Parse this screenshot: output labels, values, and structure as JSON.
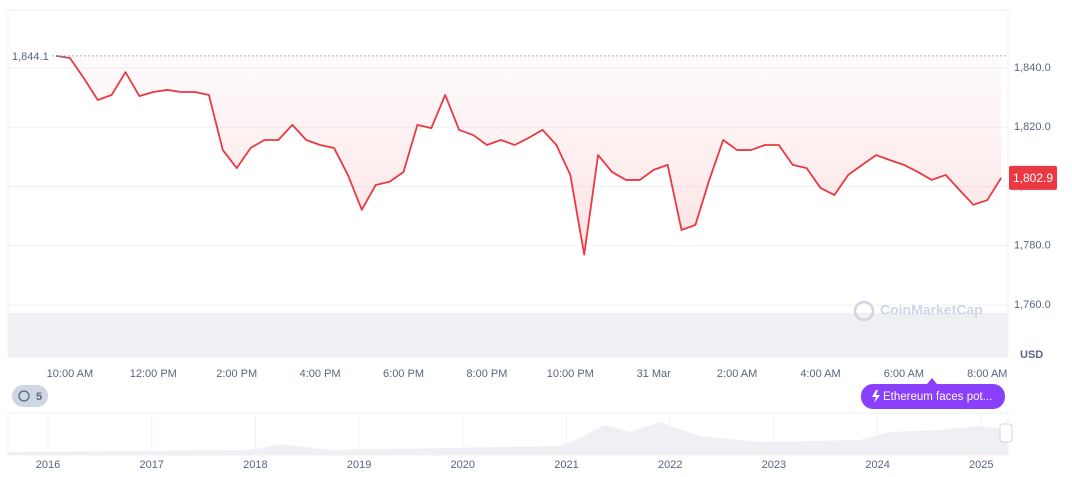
{
  "chart_data": {
    "type": "line",
    "unit": "USD",
    "watermark": "CoinMarketCap",
    "categories": [
      null,
      "10:00 AM",
      null,
      null,
      null,
      null,
      null,
      "12:00 PM",
      null,
      null,
      null,
      null,
      null,
      "2:00 PM",
      null,
      null,
      null,
      null,
      null,
      "4:00 PM",
      null,
      null,
      null,
      null,
      null,
      "6:00 PM",
      null,
      null,
      null,
      null,
      null,
      "8:00 PM",
      null,
      null,
      null,
      null,
      null,
      "10:00 PM",
      null,
      null,
      null,
      null,
      null,
      "31 Mar",
      null,
      null,
      null,
      null,
      null,
      "2:00 AM",
      null,
      null,
      null,
      null,
      null,
      "4:00 AM",
      null,
      null,
      null,
      null,
      null,
      "6:00 AM",
      null,
      null,
      null,
      null,
      null,
      "8:00 AM",
      null
    ],
    "values": [
      1844.1,
      1843.4,
      1836.6,
      1829.2,
      1830.9,
      1838.6,
      1830.5,
      1831.9,
      1832.6,
      1831.9,
      1831.9,
      1830.9,
      1812.3,
      1806.2,
      1813.0,
      1815.7,
      1815.7,
      1820.8,
      1815.7,
      1814.0,
      1813.0,
      1803.9,
      1792.1,
      1800.5,
      1801.6,
      1804.9,
      1820.8,
      1819.7,
      1830.9,
      1819.1,
      1817.4,
      1814.0,
      1815.7,
      1814.0,
      1816.4,
      1819.1,
      1814.0,
      1803.9,
      1777.0,
      1810.6,
      1804.9,
      1802.2,
      1802.2,
      1805.6,
      1807.3,
      1785.3,
      1787.0,
      1802.2,
      1815.7,
      1812.3,
      1812.3,
      1814.0,
      1814.0,
      1807.3,
      1806.2,
      1799.5,
      1797.1,
      1803.9,
      1807.3,
      1810.6,
      1808.9,
      1807.3,
      1804.9,
      1802.2,
      1803.9,
      1798.8,
      1793.8,
      1795.4,
      1802.9
    ],
    "color_up": "#16c784",
    "color_down": "#ea3943",
    "reference": {
      "value": 1844.1,
      "label": "1,844.1"
    },
    "last_price": {
      "value": 1802.9,
      "label": "1,802.9"
    },
    "ylim": [
      1742.4,
      1859.6
    ],
    "yticks": [
      {
        "value": 1760,
        "label": "1,760.0"
      },
      {
        "value": 1780,
        "label": "1,780.0"
      },
      {
        "value": 1800,
        "label": "1,800.0"
      },
      {
        "value": 1820,
        "label": "1,820.0"
      },
      {
        "value": 1840,
        "label": "1,840.0"
      }
    ],
    "grid": true,
    "events_badge": "5",
    "news": "Ethereum faces pot...",
    "navigator": {
      "labels": [
        "2016",
        "2017",
        "2018",
        "2019",
        "2020",
        "2021",
        "2022",
        "2023",
        "2024",
        "2025"
      ]
    }
  }
}
